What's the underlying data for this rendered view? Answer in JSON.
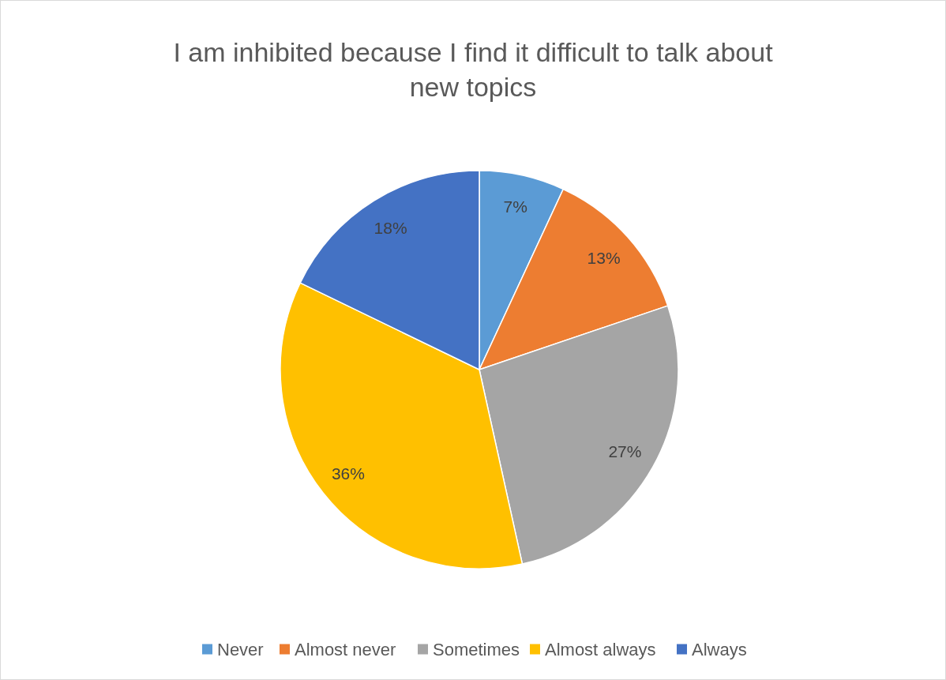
{
  "chart_data": {
    "type": "pie",
    "title": "I am inhibited because I find it difficult to talk about new topics",
    "categories": [
      "Never",
      "Almost never",
      "Sometimes",
      "Almost always",
      "Always"
    ],
    "values": [
      7,
      13,
      27,
      36,
      18
    ],
    "colors": [
      "#5b9bd5",
      "#ed7d31",
      "#a5a5a5",
      "#ffc000",
      "#4472c4"
    ],
    "value_labels": [
      "7%",
      "13%",
      "27%",
      "36%",
      "18%"
    ],
    "legend": "bottom"
  }
}
